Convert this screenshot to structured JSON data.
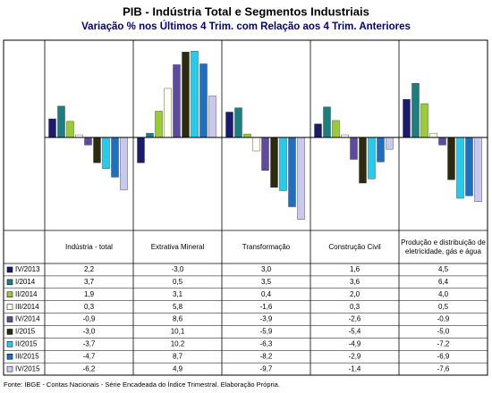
{
  "chart_data": {
    "type": "bar",
    "title": "PIB - Indústria Total e Segmentos Industriais",
    "subtitle": "Variação % nos Últimos 4 Trim. com Relação aos 4 Trim. Anteriores",
    "categories": [
      "Indústria - total",
      "Extrativa Mineral",
      "Transformação",
      "Construção Civil",
      "Produção e distribuição de eletricidade, gás e água"
    ],
    "ylim": [
      -11,
      11.5
    ],
    "series": [
      {
        "name": "IV/2013",
        "color": "#1a1a6e",
        "values": [
          2.2,
          -3.0,
          3.0,
          1.6,
          4.5
        ],
        "value_labels": [
          "2,2",
          "-3,0",
          "3,0",
          "1,6",
          "4,5"
        ]
      },
      {
        "name": "I/2014",
        "color": "#1b7f7f",
        "values": [
          3.7,
          0.5,
          3.5,
          3.6,
          6.4
        ],
        "value_labels": [
          "3,7",
          "0,5",
          "3,5",
          "3,6",
          "6,4"
        ]
      },
      {
        "name": "II/2014",
        "color": "#99cc33",
        "values": [
          1.9,
          3.1,
          0.4,
          2.0,
          4.0
        ],
        "value_labels": [
          "1,9",
          "3,1",
          "0,4",
          "2,0",
          "4,0"
        ]
      },
      {
        "name": "III/2014",
        "color": "#ffffee",
        "values": [
          0.3,
          5.8,
          -1.6,
          0.3,
          0.5
        ],
        "value_labels": [
          "0,3",
          "5,8",
          "-1,6",
          "0,3",
          "0,5"
        ]
      },
      {
        "name": "IV/2014",
        "color": "#5e4a9e",
        "values": [
          -0.9,
          8.6,
          -3.9,
          -2.6,
          -0.9
        ],
        "value_labels": [
          "-0,9",
          "8,6",
          "-3,9",
          "-2,6",
          "-0,9"
        ]
      },
      {
        "name": "I/2015",
        "color": "#2b2b10",
        "values": [
          -3.0,
          10.1,
          -5.9,
          -5.4,
          -5.0
        ],
        "value_labels": [
          "-3,0",
          "10,1",
          "-5,9",
          "-5,4",
          "-5,0"
        ]
      },
      {
        "name": "II/2015",
        "color": "#22ccee",
        "values": [
          -3.7,
          10.2,
          -6.3,
          -4.9,
          -7.2
        ],
        "value_labels": [
          "-3,7",
          "10,2",
          "-6,3",
          "-4,9",
          "-7,2"
        ]
      },
      {
        "name": "III/2015",
        "color": "#1f6fc0",
        "values": [
          -4.7,
          8.7,
          -8.2,
          -2.9,
          -6.9
        ],
        "value_labels": [
          "-4,7",
          "8,7",
          "-8,2",
          "-2,9",
          "-6,9"
        ]
      },
      {
        "name": "IV/2015",
        "color": "#c8c8f0",
        "values": [
          -6.2,
          4.9,
          -9.7,
          -1.4,
          -7.6
        ],
        "value_labels": [
          "-6,2",
          "4,9",
          "-9,7",
          "-1,4",
          "-7,6"
        ]
      }
    ],
    "footnote": "Fonte: IBGE - Contas Nacionais - Série Encadeada do Índice Trimestral. Elaboração Própria."
  }
}
